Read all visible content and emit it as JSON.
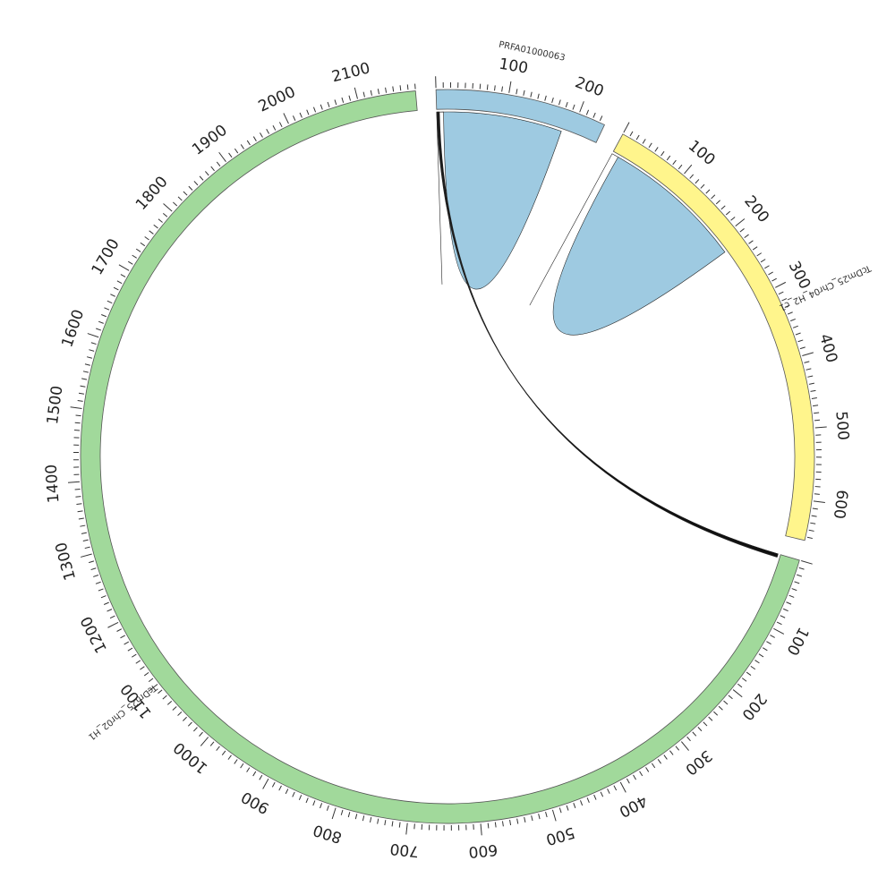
{
  "chart_data": {
    "type": "chord",
    "title": "",
    "tick_interval": 100,
    "minor_tick_interval": 10,
    "sequences": [
      {
        "name": "PRFA01000063",
        "length": 238,
        "color": "#9ecae1"
      },
      {
        "name": "TcDm25_Chr04_H2_c1",
        "length": 655,
        "color": "#fff58c"
      },
      {
        "name": "TcDm25_Chr02_H1",
        "length": 2180,
        "color": "#a1d99b"
      }
    ],
    "links": [
      {
        "source": {
          "seq": "PRFA01000063",
          "start": 0,
          "end": 185
        },
        "target": {
          "seq": "PRFA01000063",
          "start": 0,
          "end": 10
        },
        "color": "#9ecae1"
      },
      {
        "source": {
          "seq": "TcDm25_Chr04_H2_c1",
          "start": 0,
          "end": 220
        },
        "target": {
          "seq": "TcDm25_Chr04_H2_c1",
          "start": 0,
          "end": 10
        },
        "color": "#9ecae1"
      },
      {
        "source": {
          "seq": "PRFA01000063",
          "start": 0,
          "end": 2
        },
        "target": {
          "seq": "TcDm25_Chr02_H1",
          "start": 0,
          "end": 3
        },
        "color": "#111111"
      },
      {
        "source": {
          "seq": "PRFA01000063",
          "start": 1,
          "end": 3
        },
        "target": {
          "seq": "TcDm25_Chr02_H1",
          "start": 1,
          "end": 4
        },
        "color": "#111111"
      },
      {
        "source": {
          "seq": "PRFA01000063",
          "start": 2,
          "end": 4
        },
        "target": {
          "seq": "TcDm25_Chr02_H1",
          "start": 0,
          "end": 5
        },
        "color": "#111111"
      }
    ]
  }
}
